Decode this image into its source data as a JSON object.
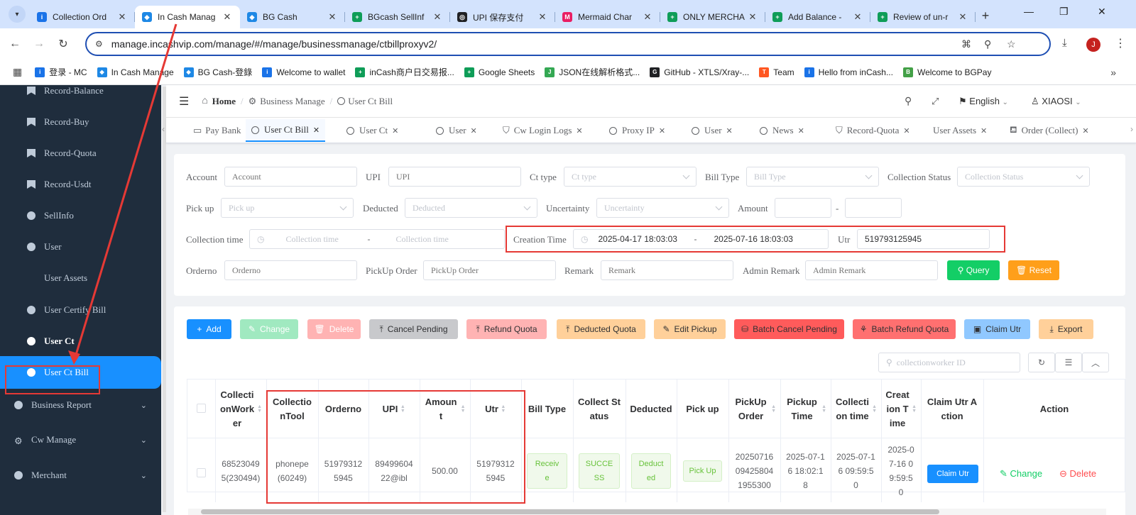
{
  "browser": {
    "tabs": [
      {
        "title": "Collection Ord",
        "color": "#1a73e8",
        "glyph": "i"
      },
      {
        "title": "In Cash Manag",
        "color": "#1e88e5",
        "glyph": "◆"
      },
      {
        "title": "BG Cash",
        "color": "#1e88e5",
        "glyph": "◆"
      },
      {
        "title": "BGcash SellInf",
        "color": "#0f9d58",
        "glyph": "+"
      },
      {
        "title": "UPI 保存支付",
        "color": "#202124",
        "glyph": "◎"
      },
      {
        "title": "Mermaid Char",
        "color": "#e91e63",
        "glyph": "M"
      },
      {
        "title": "ONLY MERCHA",
        "color": "#0f9d58",
        "glyph": "+"
      },
      {
        "title": "Add Balance -",
        "color": "#0f9d58",
        "glyph": "+"
      },
      {
        "title": "Review of un-r",
        "color": "#0f9d58",
        "glyph": "+"
      }
    ],
    "url": "manage.incashvip.com/manage/#/manage/businessmanage/ctbillproxyv2/",
    "profile_initial": "J",
    "bookmarks": [
      {
        "label": "登录 - MC",
        "color": "#1a73e8",
        "glyph": "i"
      },
      {
        "label": "In Cash Manage",
        "color": "#1e88e5",
        "glyph": "◆"
      },
      {
        "label": "BG Cash-登錄",
        "color": "#1e88e5",
        "glyph": "◆"
      },
      {
        "label": "Welcome to wallet",
        "color": "#1a73e8",
        "glyph": "i"
      },
      {
        "label": "inCash商户日交易报...",
        "color": "#0f9d58",
        "glyph": "+"
      },
      {
        "label": "Google Sheets",
        "color": "#0f9d58",
        "glyph": "+"
      },
      {
        "label": "JSON在线解析格式...",
        "color": "#34a853",
        "glyph": "J"
      },
      {
        "label": "GitHub - XTLS/Xray-...",
        "color": "#202124",
        "glyph": "G"
      },
      {
        "label": "Team",
        "color": "#ff5722",
        "glyph": "T"
      },
      {
        "label": "Hello from inCash...",
        "color": "#1a73e8",
        "glyph": "i"
      },
      {
        "label": "Welcome to BGPay",
        "color": "#43a047",
        "glyph": "B"
      }
    ]
  },
  "sidebar": {
    "items": [
      {
        "label": "Record-Balance",
        "icon": "bookmark"
      },
      {
        "label": "Record-Buy",
        "icon": "bookmark"
      },
      {
        "label": "Record-Quota",
        "icon": "bookmark"
      },
      {
        "label": "Record-Usdt",
        "icon": "bookmark"
      },
      {
        "label": "SellInfo",
        "icon": "database"
      },
      {
        "label": "User",
        "icon": "dot"
      },
      {
        "label": "User Assets",
        "icon": "none"
      },
      {
        "label": "User Certify Bill",
        "icon": "dot"
      },
      {
        "label": "User Ct",
        "icon": "dot"
      },
      {
        "label": "User Ct Bill",
        "icon": "dot"
      },
      {
        "label": "Business Report",
        "icon": "dot"
      },
      {
        "label": "Cw Manage",
        "icon": "gear"
      },
      {
        "label": "Merchant",
        "icon": "dot"
      }
    ]
  },
  "header": {
    "breadcrumb": [
      "Home",
      "Business Manage",
      "User Ct Bill"
    ],
    "language": "English",
    "user": "XIAOSI"
  },
  "tags": [
    "Pay Bank",
    "User Ct Bill",
    "User Ct",
    "User",
    "Cw Login Logs",
    "Proxy IP",
    "User",
    "News",
    "Record-Quota",
    "User Assets",
    "Order (Collect)"
  ],
  "filters": {
    "account": {
      "label": "Account",
      "placeholder": "Account"
    },
    "upi": {
      "label": "UPI",
      "placeholder": "UPI"
    },
    "ct_type": {
      "label": "Ct type",
      "placeholder": "Ct type"
    },
    "bill_type": {
      "label": "Bill Type",
      "placeholder": "Bill Type"
    },
    "collection_status": {
      "label": "Collection Status",
      "placeholder": "Collection Status"
    },
    "pick_up": {
      "label": "Pick up",
      "placeholder": "Pick up"
    },
    "deducted": {
      "label": "Deducted",
      "placeholder": "Deducted"
    },
    "uncertainty": {
      "label": "Uncertainty",
      "placeholder": "Uncertainty"
    },
    "amount": {
      "label": "Amount",
      "separator": "-"
    },
    "collection_time": {
      "label": "Collection time",
      "start_placeholder": "Collection time",
      "end_placeholder": "Collection time",
      "separator": "-"
    },
    "creation_time": {
      "label": "Creation Time",
      "start": "2025-04-17 18:03:03",
      "end": "2025-07-16 18:03:03",
      "separator": "-"
    },
    "utr": {
      "label": "Utr",
      "value": "519793125945"
    },
    "orderno": {
      "label": "Orderno",
      "placeholder": "Orderno"
    },
    "pickup_order": {
      "label": "PickUp Order",
      "placeholder": "PickUp Order"
    },
    "remark": {
      "label": "Remark",
      "placeholder": "Remark"
    },
    "admin_remark": {
      "label": "Admin Remark",
      "placeholder": "Admin Remark"
    },
    "query_label": "Query",
    "reset_label": "Reset"
  },
  "actions": [
    "Add",
    "Change",
    "Delete",
    "Cancel Pending",
    "Refund Quota",
    "Deducted Quota",
    "Edit Pickup",
    "Batch Cancel Pending",
    "Batch Refund Quota",
    "Claim Utr",
    "Export"
  ],
  "table_search_placeholder": "collectionworker ID",
  "table": {
    "headers": [
      "CollectionWorker",
      "CollectionTool",
      "Orderno",
      "UPI",
      "Amount",
      "Utr",
      "Bill Type",
      "Collect Status",
      "Deducted",
      "Pick up",
      "PickUp Order",
      "Pickup Time",
      "Collection time",
      "Creation Time",
      "Claim Utr Action",
      "Action"
    ],
    "row": {
      "worker": "685230495(230494)",
      "tool": "phonepe(60249)",
      "orderno": "519793125945",
      "upi": "8949960422@ibl",
      "amount": "500.00",
      "utr": "519793125945",
      "bill_type": "Receive",
      "status": "SUCCESS",
      "deducted": "Deducted",
      "pickup": "Pick Up",
      "pickup_order": "20250716094258041955300",
      "pickup_time": "2025-07-16 18:02:18",
      "collection_time": "2025-07-16 09:59:50",
      "creation_time": "2025-07-16 09:59:50",
      "claim_label": "Claim Utr",
      "change_label": "Change",
      "delete_label": "Delete"
    }
  },
  "colors": {
    "primary": "#1890ff",
    "success": "#13ce66",
    "warning": "#ff9f1a",
    "danger": "#ff5b5b",
    "sidebar_bg": "#1f2d3d",
    "annotation": "#e53935"
  }
}
